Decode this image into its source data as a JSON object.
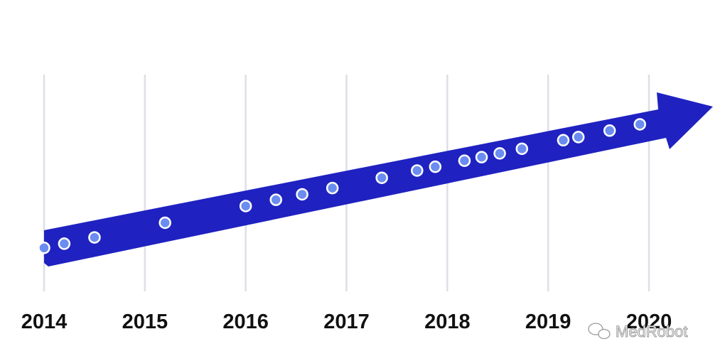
{
  "chart_data": {
    "type": "timeline",
    "x": [
      2014.0,
      2014.2,
      2014.5,
      2015.2,
      2016.0,
      2016.3,
      2016.56,
      2016.86,
      2017.35,
      2017.7,
      2017.88,
      2018.17,
      2018.34,
      2018.52,
      2018.74,
      2019.15,
      2019.3,
      2019.61,
      2019.91
    ],
    "xlim": [
      2014,
      2020
    ],
    "xticks": [
      2014,
      2015,
      2016,
      2017,
      2018,
      2019,
      2020
    ],
    "grid": true,
    "color": "#6b8cf0",
    "arrow_color": "#1f22c0",
    "watermark": "MedRobot"
  }
}
